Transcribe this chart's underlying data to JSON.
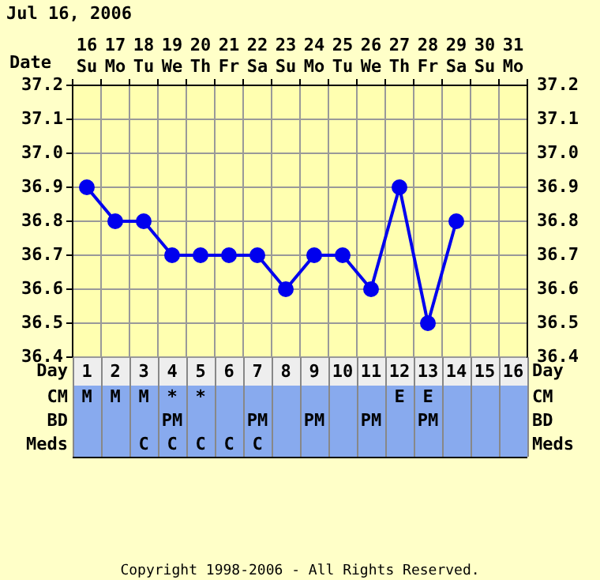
{
  "chart_data": {
    "type": "line",
    "title": "Jul 16, 2006",
    "xlabel": "Date",
    "categories": [
      "16 Su",
      "17 Mo",
      "18 Tu",
      "19 We",
      "20 Th",
      "21 Fr",
      "22 Sa",
      "23 Su",
      "24 Mo",
      "25 Tu",
      "26 We",
      "27 Th",
      "28 Fr",
      "29 Sa",
      "30 Su",
      "31 Mo"
    ],
    "series": [
      {
        "color": "#0000ee",
        "values": [
          36.9,
          36.8,
          36.8,
          36.7,
          36.7,
          36.7,
          36.7,
          36.6,
          36.7,
          36.7,
          36.6,
          36.9,
          36.5,
          36.8,
          null,
          null
        ]
      }
    ],
    "ylim": [
      36.4,
      37.2
    ],
    "yticks": [
      36.4,
      36.5,
      36.6,
      36.7,
      36.8,
      36.9,
      {
        "value": 37,
        "label": "37.0"
      },
      37.1,
      37.2
    ],
    "y2lim": [
      36.4,
      37.2
    ],
    "y2ticks": [
      36.4,
      36.5,
      36.6,
      36.7,
      36.8,
      36.9,
      {
        "value": 37,
        "label": "37.0"
      },
      37.1,
      37.2
    ],
    "x2label": "Day",
    "x2lim": [
      0.5,
      16.5
    ],
    "x2ticks": [
      1,
      2,
      3,
      4,
      5,
      6,
      7,
      8,
      9,
      10,
      11,
      12,
      13,
      14,
      15,
      16
    ],
    "grid": true,
    "marker": "circle",
    "line_style": "solid",
    "annotations": [
      "CM",
      "M",
      "M",
      "M",
      "*",
      "*",
      null,
      null,
      null,
      null,
      null,
      null,
      "E",
      "E",
      null,
      null,
      null,
      "BD",
      null,
      null,
      null,
      "PM",
      null,
      null,
      "PM",
      null,
      "PM",
      null,
      "PM",
      null,
      "PM",
      null,
      null,
      null,
      "Meds",
      null,
      null,
      "C",
      "C",
      "C",
      "C",
      "C",
      null,
      null,
      null,
      null,
      null,
      null,
      null,
      null,
      null,
      "Copyright 1998-2006 - All Rights Reserved."
    ]
  }
}
